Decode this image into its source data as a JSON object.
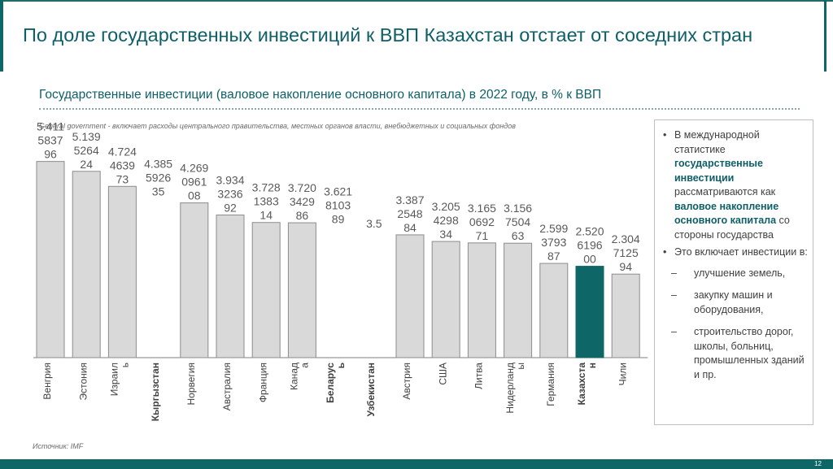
{
  "slide_title": "По доле государственных инвестиций к ВВП Казахстан отстает от соседних стран",
  "subtitle": "Государственные инвестиции (валовое накопление основного капитала) в 2022 году, в % к ВВП",
  "note": "General government - включает расходы центрального правительства, местных органов власти, внебюджетных и социальных фондов",
  "source": "Источник: IMF",
  "page_number": "12",
  "colors": {
    "brand": "#0e6766",
    "bar": "#d9d9d9",
    "highlight_bar": "#0e6766"
  },
  "chart_data": {
    "type": "bar",
    "title": "Государственные инвестиции (валовое накопление основного капитала) в 2022 году, в % к ВВП",
    "xlabel": "",
    "ylabel": "",
    "ylim": [
      0,
      6
    ],
    "grid": false,
    "categories": [
      "Венгрия",
      "Эстония",
      "Израиль",
      "Кыргызстан",
      "Норвегия",
      "Австралия",
      "Франция",
      "Канада",
      "Беларусь",
      "Узбекистан",
      "Австрия",
      "США",
      "Литва",
      "Нидерланды",
      "Германия",
      "Казахстан",
      "Чили"
    ],
    "category_labels": [
      [
        "Венгрия"
      ],
      [
        "Эстония"
      ],
      [
        "Израил",
        "ь"
      ],
      [
        "Кыргызстан"
      ],
      [
        "Норвегия"
      ],
      [
        "Австралия"
      ],
      [
        "Франция"
      ],
      [
        "Канад",
        "а"
      ],
      [
        "Беларус",
        "ь"
      ],
      [
        "Узбекистан"
      ],
      [
        "Австрия"
      ],
      [
        "США"
      ],
      [
        "Литва"
      ],
      [
        "Нидерланд",
        "ы"
      ],
      [
        "Германия"
      ],
      [
        "Казахста",
        "н"
      ],
      [
        "Чили"
      ]
    ],
    "bold_categories": [
      "Кыргызстан",
      "Беларусь",
      "Узбекистан",
      "Казахстан"
    ],
    "highlight": "Казахстан",
    "values": [
      5.411583796,
      5.139526424,
      4.724463973,
      4.385592635,
      4.269096108,
      3.934323692,
      3.728138314,
      3.720342986,
      3.621810389,
      3.5,
      3.387254884,
      3.205429834,
      3.165069271,
      3.156750463,
      2.599379387,
      2.5206196,
      2.304712594
    ],
    "value_labels": [
      [
        "5.411",
        "5837",
        "96"
      ],
      [
        "5.139",
        "5264",
        "24"
      ],
      [
        "4.724",
        "4639",
        "73"
      ],
      [
        "4.385",
        "5926",
        "35"
      ],
      [
        "4.269",
        "0961",
        "08"
      ],
      [
        "3.934",
        "3236",
        "92"
      ],
      [
        "3.728",
        "1383",
        "14"
      ],
      [
        "3.720",
        "3429",
        "86"
      ],
      [
        "3.621",
        "8103",
        "89"
      ],
      [
        "3.5"
      ],
      [
        "3.387",
        "2548",
        "84"
      ],
      [
        "3.205",
        "4298",
        "34"
      ],
      [
        "3.165",
        "0692",
        "71"
      ],
      [
        "3.156",
        "7504",
        "63"
      ],
      [
        "2.599",
        "3793",
        "87"
      ],
      [
        "2.520",
        "6196",
        "00"
      ],
      [
        "2.304",
        "7125",
        "94"
      ]
    ],
    "has_bar": [
      true,
      true,
      true,
      false,
      true,
      true,
      true,
      true,
      false,
      false,
      true,
      true,
      true,
      true,
      true,
      true,
      true
    ]
  },
  "panel": {
    "bullet_1": {
      "text_a": "В международной статистике ",
      "highlight_a": "государственные инвестиции",
      "text_b": " рассматриваются как ",
      "highlight_b": "валовое накопление основного капитала",
      "text_c": " со стороны государства"
    },
    "bullet_2": "Это включает инвестиции в:",
    "items": [
      "улучшение земель,",
      "закупку машин и оборудования,",
      "строительство дорог, школы, больниц, промышленных зданий и пр."
    ]
  }
}
